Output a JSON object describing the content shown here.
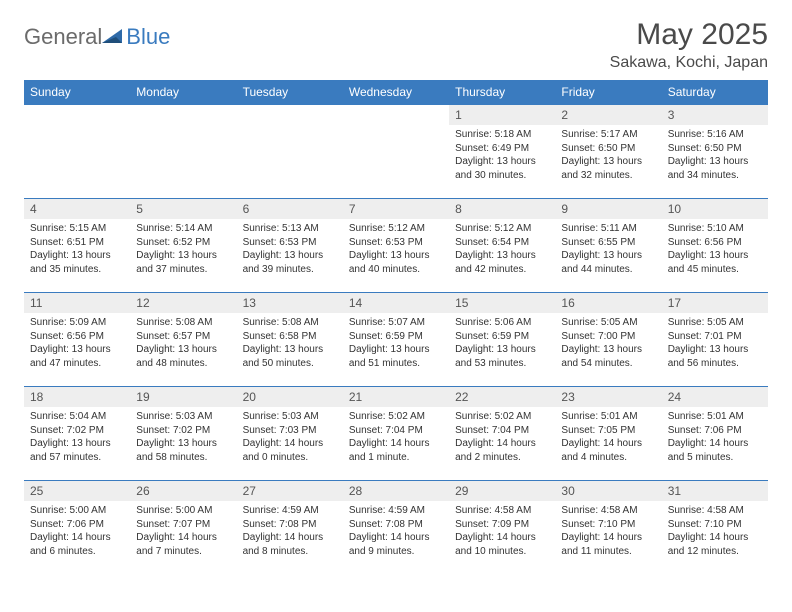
{
  "logo": {
    "general": "General",
    "blue": "Blue"
  },
  "title": "May 2025",
  "location": "Sakawa, Kochi, Japan",
  "header_color": "#3a7bbf",
  "day_num_bg": "#eeeeee",
  "day_headers": [
    "Sunday",
    "Monday",
    "Tuesday",
    "Wednesday",
    "Thursday",
    "Friday",
    "Saturday"
  ],
  "weeks": [
    [
      null,
      null,
      null,
      null,
      {
        "n": "1",
        "sr": "Sunrise: 5:18 AM",
        "ss": "Sunset: 6:49 PM",
        "dl": "Daylight: 13 hours and 30 minutes."
      },
      {
        "n": "2",
        "sr": "Sunrise: 5:17 AM",
        "ss": "Sunset: 6:50 PM",
        "dl": "Daylight: 13 hours and 32 minutes."
      },
      {
        "n": "3",
        "sr": "Sunrise: 5:16 AM",
        "ss": "Sunset: 6:50 PM",
        "dl": "Daylight: 13 hours and 34 minutes."
      }
    ],
    [
      {
        "n": "4",
        "sr": "Sunrise: 5:15 AM",
        "ss": "Sunset: 6:51 PM",
        "dl": "Daylight: 13 hours and 35 minutes."
      },
      {
        "n": "5",
        "sr": "Sunrise: 5:14 AM",
        "ss": "Sunset: 6:52 PM",
        "dl": "Daylight: 13 hours and 37 minutes."
      },
      {
        "n": "6",
        "sr": "Sunrise: 5:13 AM",
        "ss": "Sunset: 6:53 PM",
        "dl": "Daylight: 13 hours and 39 minutes."
      },
      {
        "n": "7",
        "sr": "Sunrise: 5:12 AM",
        "ss": "Sunset: 6:53 PM",
        "dl": "Daylight: 13 hours and 40 minutes."
      },
      {
        "n": "8",
        "sr": "Sunrise: 5:12 AM",
        "ss": "Sunset: 6:54 PM",
        "dl": "Daylight: 13 hours and 42 minutes."
      },
      {
        "n": "9",
        "sr": "Sunrise: 5:11 AM",
        "ss": "Sunset: 6:55 PM",
        "dl": "Daylight: 13 hours and 44 minutes."
      },
      {
        "n": "10",
        "sr": "Sunrise: 5:10 AM",
        "ss": "Sunset: 6:56 PM",
        "dl": "Daylight: 13 hours and 45 minutes."
      }
    ],
    [
      {
        "n": "11",
        "sr": "Sunrise: 5:09 AM",
        "ss": "Sunset: 6:56 PM",
        "dl": "Daylight: 13 hours and 47 minutes."
      },
      {
        "n": "12",
        "sr": "Sunrise: 5:08 AM",
        "ss": "Sunset: 6:57 PM",
        "dl": "Daylight: 13 hours and 48 minutes."
      },
      {
        "n": "13",
        "sr": "Sunrise: 5:08 AM",
        "ss": "Sunset: 6:58 PM",
        "dl": "Daylight: 13 hours and 50 minutes."
      },
      {
        "n": "14",
        "sr": "Sunrise: 5:07 AM",
        "ss": "Sunset: 6:59 PM",
        "dl": "Daylight: 13 hours and 51 minutes."
      },
      {
        "n": "15",
        "sr": "Sunrise: 5:06 AM",
        "ss": "Sunset: 6:59 PM",
        "dl": "Daylight: 13 hours and 53 minutes."
      },
      {
        "n": "16",
        "sr": "Sunrise: 5:05 AM",
        "ss": "Sunset: 7:00 PM",
        "dl": "Daylight: 13 hours and 54 minutes."
      },
      {
        "n": "17",
        "sr": "Sunrise: 5:05 AM",
        "ss": "Sunset: 7:01 PM",
        "dl": "Daylight: 13 hours and 56 minutes."
      }
    ],
    [
      {
        "n": "18",
        "sr": "Sunrise: 5:04 AM",
        "ss": "Sunset: 7:02 PM",
        "dl": "Daylight: 13 hours and 57 minutes."
      },
      {
        "n": "19",
        "sr": "Sunrise: 5:03 AM",
        "ss": "Sunset: 7:02 PM",
        "dl": "Daylight: 13 hours and 58 minutes."
      },
      {
        "n": "20",
        "sr": "Sunrise: 5:03 AM",
        "ss": "Sunset: 7:03 PM",
        "dl": "Daylight: 14 hours and 0 minutes."
      },
      {
        "n": "21",
        "sr": "Sunrise: 5:02 AM",
        "ss": "Sunset: 7:04 PM",
        "dl": "Daylight: 14 hours and 1 minute."
      },
      {
        "n": "22",
        "sr": "Sunrise: 5:02 AM",
        "ss": "Sunset: 7:04 PM",
        "dl": "Daylight: 14 hours and 2 minutes."
      },
      {
        "n": "23",
        "sr": "Sunrise: 5:01 AM",
        "ss": "Sunset: 7:05 PM",
        "dl": "Daylight: 14 hours and 4 minutes."
      },
      {
        "n": "24",
        "sr": "Sunrise: 5:01 AM",
        "ss": "Sunset: 7:06 PM",
        "dl": "Daylight: 14 hours and 5 minutes."
      }
    ],
    [
      {
        "n": "25",
        "sr": "Sunrise: 5:00 AM",
        "ss": "Sunset: 7:06 PM",
        "dl": "Daylight: 14 hours and 6 minutes."
      },
      {
        "n": "26",
        "sr": "Sunrise: 5:00 AM",
        "ss": "Sunset: 7:07 PM",
        "dl": "Daylight: 14 hours and 7 minutes."
      },
      {
        "n": "27",
        "sr": "Sunrise: 4:59 AM",
        "ss": "Sunset: 7:08 PM",
        "dl": "Daylight: 14 hours and 8 minutes."
      },
      {
        "n": "28",
        "sr": "Sunrise: 4:59 AM",
        "ss": "Sunset: 7:08 PM",
        "dl": "Daylight: 14 hours and 9 minutes."
      },
      {
        "n": "29",
        "sr": "Sunrise: 4:58 AM",
        "ss": "Sunset: 7:09 PM",
        "dl": "Daylight: 14 hours and 10 minutes."
      },
      {
        "n": "30",
        "sr": "Sunrise: 4:58 AM",
        "ss": "Sunset: 7:10 PM",
        "dl": "Daylight: 14 hours and 11 minutes."
      },
      {
        "n": "31",
        "sr": "Sunrise: 4:58 AM",
        "ss": "Sunset: 7:10 PM",
        "dl": "Daylight: 14 hours and 12 minutes."
      }
    ]
  ]
}
